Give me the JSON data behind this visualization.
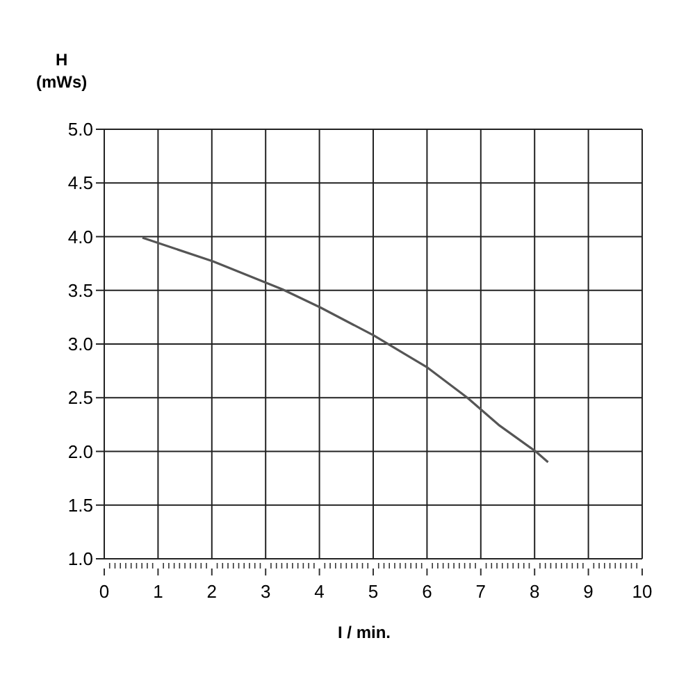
{
  "chart_data": {
    "type": "line",
    "xlabel": "I / min.",
    "ylabel": "H\n(mWs)",
    "x": [
      0.71,
      2.02,
      3.31,
      4.02,
      5.01,
      6.01,
      6.75,
      7.35,
      8.02,
      8.25
    ],
    "series": [
      {
        "color": "#555555",
        "values": [
          3.99,
          3.77,
          3.51,
          3.34,
          3.08,
          2.78,
          2.5,
          2.24,
          2.0,
          1.9
        ]
      }
    ],
    "xlim": [
      0,
      10
    ],
    "xticks": [
      0,
      {
        "value": 0.1,
        "label": null
      },
      {
        "value": 0.2,
        "label": null
      },
      {
        "value": 0.3,
        "label": null
      },
      {
        "value": 0.4,
        "label": null
      },
      {
        "value": 0.5,
        "label": null
      },
      {
        "value": 0.6,
        "label": null
      },
      {
        "value": 0.7,
        "label": null
      },
      {
        "value": 0.8,
        "label": null
      },
      {
        "value": 0.9,
        "label": null
      },
      1,
      {
        "value": 1.1,
        "label": null
      },
      {
        "value": 1.2,
        "label": null
      },
      {
        "value": 1.3,
        "label": null
      },
      {
        "value": 1.4,
        "label": null
      },
      {
        "value": 1.5,
        "label": null
      },
      {
        "value": 1.6,
        "label": null
      },
      {
        "value": 1.7,
        "label": null
      },
      {
        "value": 1.8,
        "label": null
      },
      {
        "value": 1.9,
        "label": null
      },
      2,
      {
        "value": 2.1,
        "label": null
      },
      {
        "value": 2.2,
        "label": null
      },
      {
        "value": 2.3,
        "label": null
      },
      {
        "value": 2.4,
        "label": null
      },
      {
        "value": 2.5,
        "label": null
      },
      {
        "value": 2.6,
        "label": null
      },
      {
        "value": 2.7,
        "label": null
      },
      {
        "value": 2.8,
        "label": null
      },
      {
        "value": 2.9,
        "label": null
      },
      3,
      {
        "value": 3.1,
        "label": null
      },
      {
        "value": 3.2,
        "label": null
      },
      {
        "value": 3.3,
        "label": null
      },
      {
        "value": 3.4,
        "label": null
      },
      {
        "value": 3.5,
        "label": null
      },
      {
        "value": 3.6,
        "label": null
      },
      {
        "value": 3.7,
        "label": null
      },
      {
        "value": 3.8,
        "label": null
      },
      {
        "value": 3.9,
        "label": null
      },
      4,
      {
        "value": 4.1,
        "label": null
      },
      {
        "value": 4.2,
        "label": null
      },
      {
        "value": 4.3,
        "label": null
      },
      {
        "value": 4.4,
        "label": null
      },
      {
        "value": 4.5,
        "label": null
      },
      {
        "value": 4.6,
        "label": null
      },
      {
        "value": 4.7,
        "label": null
      },
      {
        "value": 4.8,
        "label": null
      },
      {
        "value": 4.9,
        "label": null
      },
      5,
      {
        "value": 5.1,
        "label": null
      },
      {
        "value": 5.2,
        "label": null
      },
      {
        "value": 5.3,
        "label": null
      },
      {
        "value": 5.4,
        "label": null
      },
      {
        "value": 5.5,
        "label": null
      },
      {
        "value": 5.6,
        "label": null
      },
      {
        "value": 5.7,
        "label": null
      },
      {
        "value": 5.8,
        "label": null
      },
      {
        "value": 5.9,
        "label": null
      },
      6,
      {
        "value": 6.1,
        "label": null
      },
      {
        "value": 6.2,
        "label": null
      },
      {
        "value": 6.3,
        "label": null
      },
      {
        "value": 6.4,
        "label": null
      },
      {
        "value": 6.5,
        "label": null
      },
      {
        "value": 6.6,
        "label": null
      },
      {
        "value": 6.7,
        "label": null
      },
      {
        "value": 6.8,
        "label": null
      },
      {
        "value": 6.9,
        "label": null
      },
      7,
      {
        "value": 7.1,
        "label": null
      },
      {
        "value": 7.2,
        "label": null
      },
      {
        "value": 7.3,
        "label": null
      },
      {
        "value": 7.4,
        "label": null
      },
      {
        "value": 7.5,
        "label": null
      },
      {
        "value": 7.6,
        "label": null
      },
      {
        "value": 7.7,
        "label": null
      },
      {
        "value": 7.8,
        "label": null
      },
      {
        "value": 7.9,
        "label": null
      },
      8,
      {
        "value": 8.1,
        "label": null
      },
      {
        "value": 8.2,
        "label": null
      },
      {
        "value": 8.3,
        "label": null
      },
      {
        "value": 8.4,
        "label": null
      },
      {
        "value": 8.5,
        "label": null
      },
      {
        "value": 8.6,
        "label": null
      },
      {
        "value": 8.7,
        "label": null
      },
      {
        "value": 8.8,
        "label": null
      },
      {
        "value": 8.9,
        "label": null
      },
      9,
      {
        "value": 9.1,
        "label": null
      },
      {
        "value": 9.2,
        "label": null
      },
      {
        "value": 9.3,
        "label": null
      },
      {
        "value": 9.4,
        "label": null
      },
      {
        "value": 9.5,
        "label": null
      },
      {
        "value": 9.6,
        "label": null
      },
      {
        "value": 9.7,
        "label": null
      },
      {
        "value": 9.8,
        "label": null
      },
      {
        "value": 9.9,
        "label": null
      },
      10
    ],
    "ylim": [
      1,
      5
    ],
    "yticks": [
      {
        "value": 1,
        "label": "1.0"
      },
      {
        "value": 1.5,
        "label": "1.5"
      },
      {
        "value": 2,
        "label": "2.0"
      },
      {
        "value": 2.5,
        "label": "2.5"
      },
      {
        "value": 3,
        "label": "3.0"
      },
      {
        "value": 3.5,
        "label": "3.5"
      },
      {
        "value": 4,
        "label": "4.0"
      },
      {
        "value": 4.5,
        "label": "4.5"
      },
      {
        "value": 5,
        "label": "5.0"
      }
    ],
    "grid": true
  }
}
